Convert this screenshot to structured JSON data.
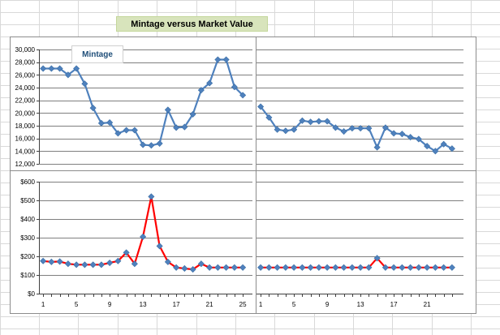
{
  "title": "Mintage versus Market Value",
  "colors": {
    "sheet_grid": "#d9d9d9",
    "chart_border": "#8c8c8c",
    "plot_grid": "#7f7f7f",
    "mintage_line": "#4f81bd",
    "marker": "#4f81bd",
    "value_line": "#ff0000",
    "title_fill": "#d8e4bc",
    "legend_text": "#1f4e79"
  },
  "chart_data": [
    {
      "id": "mintage-left",
      "type": "line",
      "legend": "Mintage",
      "ylim": [
        12000,
        30000
      ],
      "ytick_step": 2000,
      "ytick_labels": [
        "12,000",
        "14,000",
        "16,000",
        "18,000",
        "20,000",
        "22,000",
        "24,000",
        "26,000",
        "28,000",
        "30,000"
      ],
      "x": [
        1,
        2,
        3,
        4,
        5,
        6,
        7,
        8,
        9,
        10,
        11,
        12,
        13,
        14,
        15,
        16,
        17,
        18,
        19,
        20,
        21,
        22,
        23,
        24,
        25
      ],
      "values": [
        27000,
        27000,
        27000,
        26000,
        27000,
        24600,
        20800,
        18400,
        18500,
        16800,
        17300,
        17300,
        15000,
        14900,
        15200,
        20500,
        17700,
        17800,
        19800,
        23600,
        24700,
        28400,
        28400,
        24100,
        22800
      ],
      "line_color": "#4f81bd"
    },
    {
      "id": "mintage-right",
      "type": "line",
      "ylim": [
        12000,
        30000
      ],
      "ytick_step": 2000,
      "x": [
        1,
        2,
        3,
        4,
        5,
        6,
        7,
        8,
        9,
        10,
        11,
        12,
        13,
        14,
        15,
        16,
        17,
        18,
        19,
        20,
        21,
        22,
        23,
        24
      ],
      "values": [
        21000,
        19300,
        17400,
        17200,
        17400,
        18800,
        18600,
        18700,
        18700,
        17700,
        17100,
        17600,
        17600,
        17600,
        14600,
        17700,
        16800,
        16700,
        16200,
        15900,
        14800,
        14000,
        15100,
        14400
      ],
      "line_color": "#4f81bd"
    },
    {
      "id": "value-left",
      "type": "line",
      "ylim": [
        0,
        600
      ],
      "ytick_step": 100,
      "ytick_labels": [
        "$0",
        "$100",
        "$200",
        "$300",
        "$400",
        "$500",
        "$600"
      ],
      "xtick_labels": [
        "1",
        "5",
        "9",
        "13",
        "17",
        "21",
        "25"
      ],
      "x": [
        1,
        2,
        3,
        4,
        5,
        6,
        7,
        8,
        9,
        10,
        11,
        12,
        13,
        14,
        15,
        16,
        17,
        18,
        19,
        20,
        21,
        22,
        23,
        24,
        25
      ],
      "values": [
        175,
        170,
        172,
        160,
        155,
        155,
        155,
        155,
        165,
        175,
        220,
        160,
        305,
        520,
        255,
        170,
        140,
        135,
        130,
        160,
        140,
        140,
        140,
        140,
        140
      ],
      "line_color": "#ff0000"
    },
    {
      "id": "value-right",
      "type": "line",
      "ylim": [
        0,
        600
      ],
      "ytick_step": 100,
      "xtick_labels": [
        "1",
        "5",
        "9",
        "13",
        "17",
        "21"
      ],
      "x": [
        1,
        2,
        3,
        4,
        5,
        6,
        7,
        8,
        9,
        10,
        11,
        12,
        13,
        14,
        15,
        16,
        17,
        18,
        19,
        20,
        21,
        22,
        23,
        24
      ],
      "values": [
        140,
        140,
        140,
        140,
        140,
        140,
        140,
        140,
        140,
        140,
        140,
        140,
        140,
        140,
        190,
        140,
        140,
        140,
        140,
        140,
        140,
        140,
        140,
        140
      ],
      "line_color": "#ff0000"
    }
  ]
}
